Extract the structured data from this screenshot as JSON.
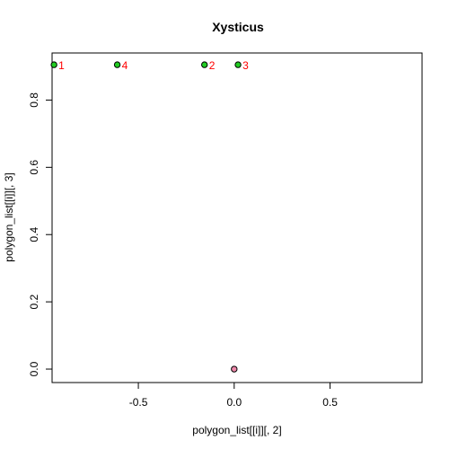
{
  "chart_data": {
    "type": "scatter",
    "title": "Xysticus",
    "xlabel": "polygon_list[[i]][, 2]",
    "ylabel": "polygon_list[[i]][, 3]",
    "xlim": [
      -0.95,
      0.98
    ],
    "ylim": [
      -0.04,
      0.94
    ],
    "x_ticks": [
      -0.5,
      0.0,
      0.5
    ],
    "x_tick_labels": [
      "-0.5",
      "0.0",
      "0.5"
    ],
    "y_ticks": [
      0.0,
      0.2,
      0.4,
      0.6,
      0.8
    ],
    "y_tick_labels": [
      "0.0",
      "0.2",
      "0.4",
      "0.6",
      "0.8"
    ],
    "grid": false,
    "labeled_points": {
      "color": "#22cc22",
      "label_color": "#ff0000",
      "points": [
        {
          "x": -0.94,
          "y": 0.905,
          "label": "1"
        },
        {
          "x": -0.155,
          "y": 0.905,
          "label": "2"
        },
        {
          "x": 0.02,
          "y": 0.905,
          "label": "3"
        },
        {
          "x": -0.61,
          "y": 0.905,
          "label": "4"
        }
      ]
    },
    "centroid_point": {
      "color": "#ee88aa",
      "x": 0.0,
      "y": 0.0
    }
  }
}
